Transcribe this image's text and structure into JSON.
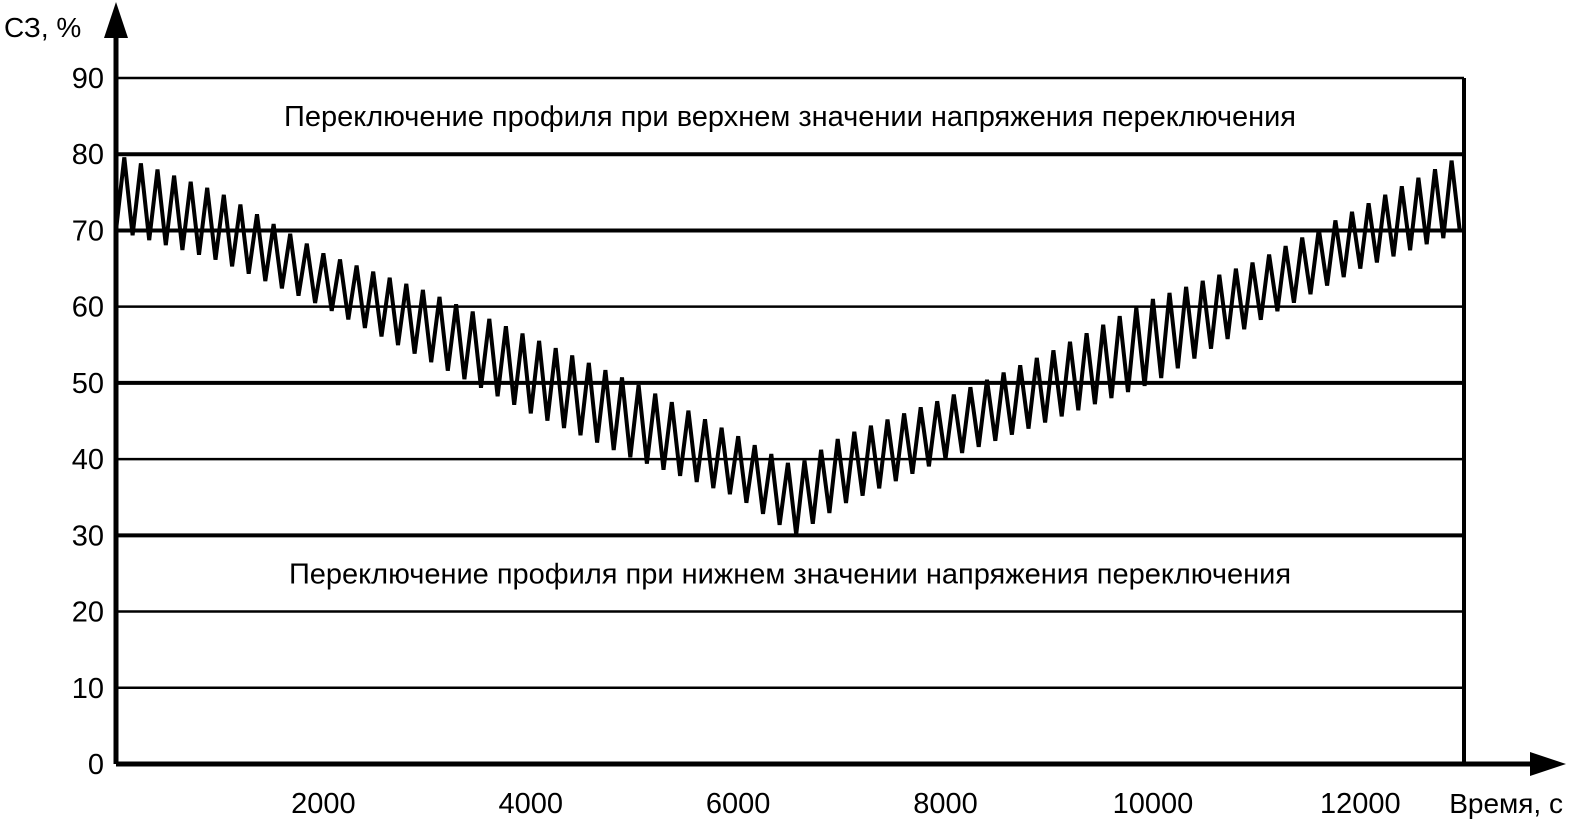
{
  "chart_data": {
    "type": "line",
    "ylabel": "СЗ, %",
    "xlabel": "Время, с",
    "xlim": [
      0,
      13000
    ],
    "ylim": [
      0,
      90
    ],
    "yticks": [
      0,
      10,
      20,
      30,
      40,
      50,
      60,
      70,
      80,
      90
    ],
    "xticks": [
      2000,
      4000,
      6000,
      8000,
      10000,
      12000
    ],
    "grid": "horizontal",
    "gridlines_bold": [
      30,
      50,
      70,
      80
    ],
    "annotations": [
      {
        "text": "Переключение профиля при верхнем значении напряжения переключения",
        "x": 6500,
        "y": 85
      },
      {
        "text": "Переключение профиля при нижнем значении напряжения переключения",
        "x": 6500,
        "y": 25
      }
    ],
    "series": [
      {
        "style": "sawtooth",
        "segment_period": 160,
        "x": [
          0,
          1000,
          2000,
          3000,
          4000,
          5000,
          6000,
          6550,
          7000,
          8000,
          9000,
          10000,
          11000,
          12000,
          13000
        ],
        "upper": [
          80,
          75,
          67,
          62,
          56,
          50,
          43,
          39,
          43,
          48,
          54,
          61,
          66,
          73,
          80
        ],
        "lower": [
          70,
          66,
          60,
          53,
          46,
          40,
          35,
          30,
          34,
          40,
          45,
          50,
          58,
          65,
          70
        ]
      }
    ]
  }
}
